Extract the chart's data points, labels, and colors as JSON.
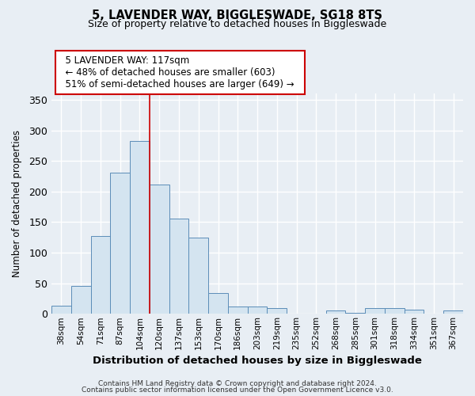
{
  "title": "5, LAVENDER WAY, BIGGLESWADE, SG18 8TS",
  "subtitle": "Size of property relative to detached houses in Biggleswade",
  "xlabel": "Distribution of detached houses by size in Biggleswade",
  "ylabel": "Number of detached properties",
  "bin_labels": [
    "38sqm",
    "54sqm",
    "71sqm",
    "87sqm",
    "104sqm",
    "120sqm",
    "137sqm",
    "153sqm",
    "170sqm",
    "186sqm",
    "203sqm",
    "219sqm",
    "235sqm",
    "252sqm",
    "268sqm",
    "285sqm",
    "301sqm",
    "318sqm",
    "334sqm",
    "351sqm",
    "367sqm"
  ],
  "bar_heights": [
    13,
    46,
    127,
    231,
    283,
    212,
    156,
    125,
    34,
    12,
    12,
    10,
    0,
    0,
    5,
    2,
    10,
    9,
    7,
    0,
    5
  ],
  "bar_color": "#d4e4f0",
  "bar_edge_color": "#5b8db8",
  "vline_x_index": 4,
  "vline_color": "#cc0000",
  "annotation_title": "5 LAVENDER WAY: 117sqm",
  "annotation_line1": "← 48% of detached houses are smaller (603)",
  "annotation_line2": "51% of semi-detached houses are larger (649) →",
  "annotation_box_color": "white",
  "annotation_box_edge": "#cc0000",
  "ylim": [
    0,
    360
  ],
  "yticks": [
    0,
    50,
    100,
    150,
    200,
    250,
    300,
    350
  ],
  "footer1": "Contains HM Land Registry data © Crown copyright and database right 2024.",
  "footer2": "Contains public sector information licensed under the Open Government Licence v3.0.",
  "bg_color": "#e8eef4"
}
